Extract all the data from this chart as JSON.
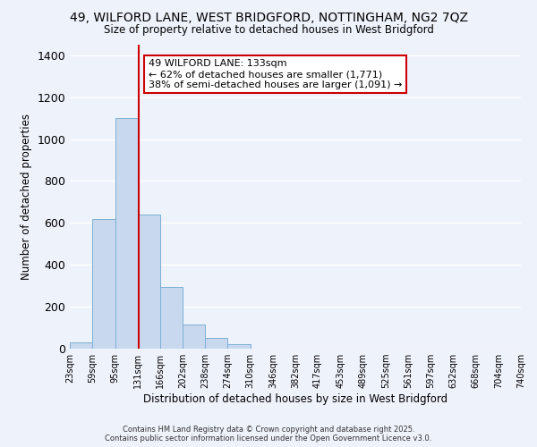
{
  "title_line1": "49, WILFORD LANE, WEST BRIDGFORD, NOTTINGHAM, NG2 7QZ",
  "title_line2": "Size of property relative to detached houses in West Bridgford",
  "xlabel": "Distribution of detached houses by size in West Bridgford",
  "ylabel": "Number of detached properties",
  "bar_left_edges": [
    23,
    59,
    95,
    131,
    166,
    202,
    238,
    274,
    310,
    346,
    382,
    417,
    453,
    489,
    525,
    561,
    597,
    632,
    668,
    704
  ],
  "bar_widths": [
    36,
    36,
    36,
    35,
    36,
    36,
    36,
    36,
    36,
    36,
    35,
    36,
    36,
    36,
    36,
    36,
    35,
    36,
    36,
    36
  ],
  "bar_heights": [
    30,
    620,
    1100,
    640,
    295,
    115,
    50,
    20,
    0,
    0,
    0,
    0,
    0,
    0,
    0,
    0,
    0,
    0,
    0,
    0
  ],
  "tick_labels": [
    "23sqm",
    "59sqm",
    "95sqm",
    "131sqm",
    "166sqm",
    "202sqm",
    "238sqm",
    "274sqm",
    "310sqm",
    "346sqm",
    "382sqm",
    "417sqm",
    "453sqm",
    "489sqm",
    "525sqm",
    "561sqm",
    "597sqm",
    "632sqm",
    "668sqm",
    "704sqm",
    "740sqm"
  ],
  "tick_positions": [
    23,
    59,
    95,
    131,
    166,
    202,
    238,
    274,
    310,
    346,
    382,
    417,
    453,
    489,
    525,
    561,
    597,
    632,
    668,
    704,
    740
  ],
  "bar_color": "#c8d9ef",
  "bar_edge_color": "#7bafd4",
  "vline_x": 133,
  "vline_color": "#cc0000",
  "ylim": [
    0,
    1450
  ],
  "xlim": [
    23,
    740
  ],
  "annotation_text_line1": "49 WILFORD LANE: 133sqm",
  "annotation_text_line2": "← 62% of detached houses are smaller (1,771)",
  "annotation_text_line3": "38% of semi-detached houses are larger (1,091) →",
  "annotation_box_color": "#ffffff",
  "annotation_border_color": "#cc0000",
  "background_color": "#eef2fb",
  "grid_color": "#ffffff",
  "yticks": [
    0,
    200,
    400,
    600,
    800,
    1000,
    1200,
    1400
  ],
  "footer_line1": "Contains HM Land Registry data © Crown copyright and database right 2025.",
  "footer_line2": "Contains public sector information licensed under the Open Government Licence v3.0."
}
